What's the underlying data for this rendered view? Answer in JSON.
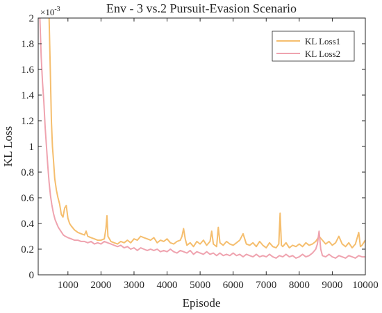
{
  "colors": {
    "series1": "#F5BE6E",
    "series2": "#EFA3AF",
    "axis": "#262626"
  },
  "chart_data": {
    "type": "line",
    "title": "Env - 3 vs.2 Pursuit-Evasion Scenario",
    "xlabel": "Episode",
    "ylabel": "KL Loss",
    "y_exponent_label": "×10",
    "y_exponent_power": "-3",
    "xlim": [
      100,
      10000
    ],
    "ylim": [
      0,
      2
    ],
    "y_scale_factor": 0.001,
    "x_ticks": [
      1000,
      2000,
      3000,
      4000,
      5000,
      6000,
      7000,
      8000,
      9000,
      10000
    ],
    "x_tick_labels": [
      "1000",
      "2000",
      "3000",
      "4000",
      "5000",
      "6000",
      "7000",
      "8000",
      "9000",
      "10000"
    ],
    "y_ticks": [
      0,
      0.2,
      0.4,
      0.6,
      0.8,
      1,
      1.2,
      1.4,
      1.6,
      1.8,
      2
    ],
    "y_tick_labels": [
      "0",
      "0.2",
      "0.4",
      "0.6",
      "0.8",
      "1",
      "1.2",
      "1.4",
      "1.6",
      "1.8",
      "2"
    ],
    "grid": false,
    "legend_position": "top-right",
    "series": [
      {
        "name": "KL Loss1",
        "color": "#F5BE6E",
        "points": [
          [
            430,
            2.0
          ],
          [
            470,
            1.55
          ],
          [
            500,
            1.2
          ],
          [
            530,
            1.0
          ],
          [
            560,
            0.9
          ],
          [
            600,
            0.75
          ],
          [
            650,
            0.66
          ],
          [
            700,
            0.6
          ],
          [
            750,
            0.55
          ],
          [
            800,
            0.47
          ],
          [
            850,
            0.45
          ],
          [
            900,
            0.52
          ],
          [
            950,
            0.54
          ],
          [
            1000,
            0.44
          ],
          [
            1050,
            0.4
          ],
          [
            1100,
            0.38
          ],
          [
            1200,
            0.35
          ],
          [
            1300,
            0.33
          ],
          [
            1400,
            0.32
          ],
          [
            1500,
            0.31
          ],
          [
            1550,
            0.34
          ],
          [
            1600,
            0.3
          ],
          [
            1700,
            0.29
          ],
          [
            1800,
            0.28
          ],
          [
            1900,
            0.27
          ],
          [
            2000,
            0.27
          ],
          [
            2100,
            0.28
          ],
          [
            2150,
            0.36
          ],
          [
            2180,
            0.46
          ],
          [
            2210,
            0.3
          ],
          [
            2300,
            0.26
          ],
          [
            2400,
            0.25
          ],
          [
            2500,
            0.24
          ],
          [
            2600,
            0.26
          ],
          [
            2700,
            0.25
          ],
          [
            2800,
            0.27
          ],
          [
            2900,
            0.25
          ],
          [
            3000,
            0.28
          ],
          [
            3100,
            0.27
          ],
          [
            3200,
            0.3
          ],
          [
            3300,
            0.29
          ],
          [
            3400,
            0.28
          ],
          [
            3500,
            0.27
          ],
          [
            3600,
            0.29
          ],
          [
            3700,
            0.25
          ],
          [
            3800,
            0.27
          ],
          [
            3900,
            0.26
          ],
          [
            4000,
            0.28
          ],
          [
            4100,
            0.25
          ],
          [
            4200,
            0.24
          ],
          [
            4300,
            0.26
          ],
          [
            4400,
            0.27
          ],
          [
            4450,
            0.3
          ],
          [
            4500,
            0.36
          ],
          [
            4550,
            0.28
          ],
          [
            4600,
            0.23
          ],
          [
            4700,
            0.25
          ],
          [
            4800,
            0.22
          ],
          [
            4900,
            0.26
          ],
          [
            5000,
            0.24
          ],
          [
            5100,
            0.27
          ],
          [
            5200,
            0.23
          ],
          [
            5300,
            0.26
          ],
          [
            5350,
            0.34
          ],
          [
            5400,
            0.24
          ],
          [
            5500,
            0.22
          ],
          [
            5550,
            0.37
          ],
          [
            5600,
            0.25
          ],
          [
            5700,
            0.23
          ],
          [
            5800,
            0.26
          ],
          [
            5900,
            0.24
          ],
          [
            6000,
            0.23
          ],
          [
            6100,
            0.25
          ],
          [
            6200,
            0.27
          ],
          [
            6300,
            0.32
          ],
          [
            6400,
            0.24
          ],
          [
            6500,
            0.23
          ],
          [
            6600,
            0.25
          ],
          [
            6700,
            0.22
          ],
          [
            6800,
            0.26
          ],
          [
            6900,
            0.23
          ],
          [
            7000,
            0.21
          ],
          [
            7100,
            0.25
          ],
          [
            7200,
            0.22
          ],
          [
            7300,
            0.21
          ],
          [
            7380,
            0.24
          ],
          [
            7420,
            0.48
          ],
          [
            7460,
            0.23
          ],
          [
            7500,
            0.22
          ],
          [
            7600,
            0.25
          ],
          [
            7700,
            0.21
          ],
          [
            7800,
            0.23
          ],
          [
            7900,
            0.22
          ],
          [
            8000,
            0.24
          ],
          [
            8100,
            0.22
          ],
          [
            8200,
            0.25
          ],
          [
            8300,
            0.23
          ],
          [
            8400,
            0.24
          ],
          [
            8500,
            0.26
          ],
          [
            8600,
            0.3
          ],
          [
            8700,
            0.27
          ],
          [
            8800,
            0.24
          ],
          [
            8900,
            0.26
          ],
          [
            9000,
            0.23
          ],
          [
            9100,
            0.25
          ],
          [
            9200,
            0.3
          ],
          [
            9300,
            0.24
          ],
          [
            9400,
            0.22
          ],
          [
            9500,
            0.25
          ],
          [
            9600,
            0.21
          ],
          [
            9700,
            0.24
          ],
          [
            9800,
            0.33
          ],
          [
            9850,
            0.22
          ],
          [
            9900,
            0.23
          ],
          [
            10000,
            0.27
          ]
        ]
      },
      {
        "name": "KL Loss2",
        "color": "#EFA3AF",
        "points": [
          [
            150,
            2.0
          ],
          [
            190,
            1.7
          ],
          [
            230,
            1.5
          ],
          [
            270,
            1.35
          ],
          [
            310,
            1.15
          ],
          [
            350,
            1.0
          ],
          [
            390,
            0.85
          ],
          [
            430,
            0.72
          ],
          [
            470,
            0.62
          ],
          [
            510,
            0.55
          ],
          [
            560,
            0.48
          ],
          [
            610,
            0.43
          ],
          [
            660,
            0.4
          ],
          [
            710,
            0.37
          ],
          [
            760,
            0.35
          ],
          [
            810,
            0.33
          ],
          [
            860,
            0.31
          ],
          [
            920,
            0.3
          ],
          [
            1000,
            0.29
          ],
          [
            1100,
            0.28
          ],
          [
            1200,
            0.27
          ],
          [
            1300,
            0.27
          ],
          [
            1400,
            0.26
          ],
          [
            1500,
            0.26
          ],
          [
            1600,
            0.25
          ],
          [
            1700,
            0.26
          ],
          [
            1800,
            0.24
          ],
          [
            1900,
            0.25
          ],
          [
            2000,
            0.24
          ],
          [
            2100,
            0.26
          ],
          [
            2200,
            0.25
          ],
          [
            2300,
            0.24
          ],
          [
            2400,
            0.23
          ],
          [
            2500,
            0.22
          ],
          [
            2600,
            0.23
          ],
          [
            2700,
            0.21
          ],
          [
            2800,
            0.22
          ],
          [
            2900,
            0.2
          ],
          [
            3000,
            0.21
          ],
          [
            3100,
            0.19
          ],
          [
            3200,
            0.21
          ],
          [
            3300,
            0.2
          ],
          [
            3400,
            0.19
          ],
          [
            3500,
            0.2
          ],
          [
            3600,
            0.19
          ],
          [
            3700,
            0.2
          ],
          [
            3800,
            0.18
          ],
          [
            3900,
            0.19
          ],
          [
            4000,
            0.18
          ],
          [
            4100,
            0.2
          ],
          [
            4200,
            0.18
          ],
          [
            4300,
            0.17
          ],
          [
            4400,
            0.19
          ],
          [
            4500,
            0.18
          ],
          [
            4600,
            0.17
          ],
          [
            4700,
            0.19
          ],
          [
            4800,
            0.16
          ],
          [
            4900,
            0.18
          ],
          [
            5000,
            0.17
          ],
          [
            5100,
            0.16
          ],
          [
            5200,
            0.18
          ],
          [
            5300,
            0.16
          ],
          [
            5400,
            0.17
          ],
          [
            5500,
            0.15
          ],
          [
            5600,
            0.17
          ],
          [
            5700,
            0.15
          ],
          [
            5800,
            0.16
          ],
          [
            5900,
            0.15
          ],
          [
            6000,
            0.17
          ],
          [
            6100,
            0.15
          ],
          [
            6200,
            0.16
          ],
          [
            6300,
            0.14
          ],
          [
            6400,
            0.16
          ],
          [
            6500,
            0.15
          ],
          [
            6600,
            0.14
          ],
          [
            6700,
            0.16
          ],
          [
            6800,
            0.14
          ],
          [
            6900,
            0.15
          ],
          [
            7000,
            0.14
          ],
          [
            7100,
            0.16
          ],
          [
            7200,
            0.14
          ],
          [
            7300,
            0.13
          ],
          [
            7400,
            0.15
          ],
          [
            7500,
            0.14
          ],
          [
            7600,
            0.16
          ],
          [
            7700,
            0.14
          ],
          [
            7800,
            0.15
          ],
          [
            7900,
            0.13
          ],
          [
            8000,
            0.14
          ],
          [
            8100,
            0.16
          ],
          [
            8200,
            0.14
          ],
          [
            8300,
            0.15
          ],
          [
            8400,
            0.17
          ],
          [
            8500,
            0.2
          ],
          [
            8550,
            0.24
          ],
          [
            8600,
            0.34
          ],
          [
            8650,
            0.2
          ],
          [
            8700,
            0.15
          ],
          [
            8800,
            0.14
          ],
          [
            8900,
            0.16
          ],
          [
            9000,
            0.14
          ],
          [
            9100,
            0.13
          ],
          [
            9200,
            0.15
          ],
          [
            9300,
            0.14
          ],
          [
            9400,
            0.13
          ],
          [
            9500,
            0.15
          ],
          [
            9600,
            0.14
          ],
          [
            9700,
            0.13
          ],
          [
            9800,
            0.15
          ],
          [
            9900,
            0.14
          ],
          [
            10000,
            0.14
          ]
        ]
      }
    ]
  }
}
